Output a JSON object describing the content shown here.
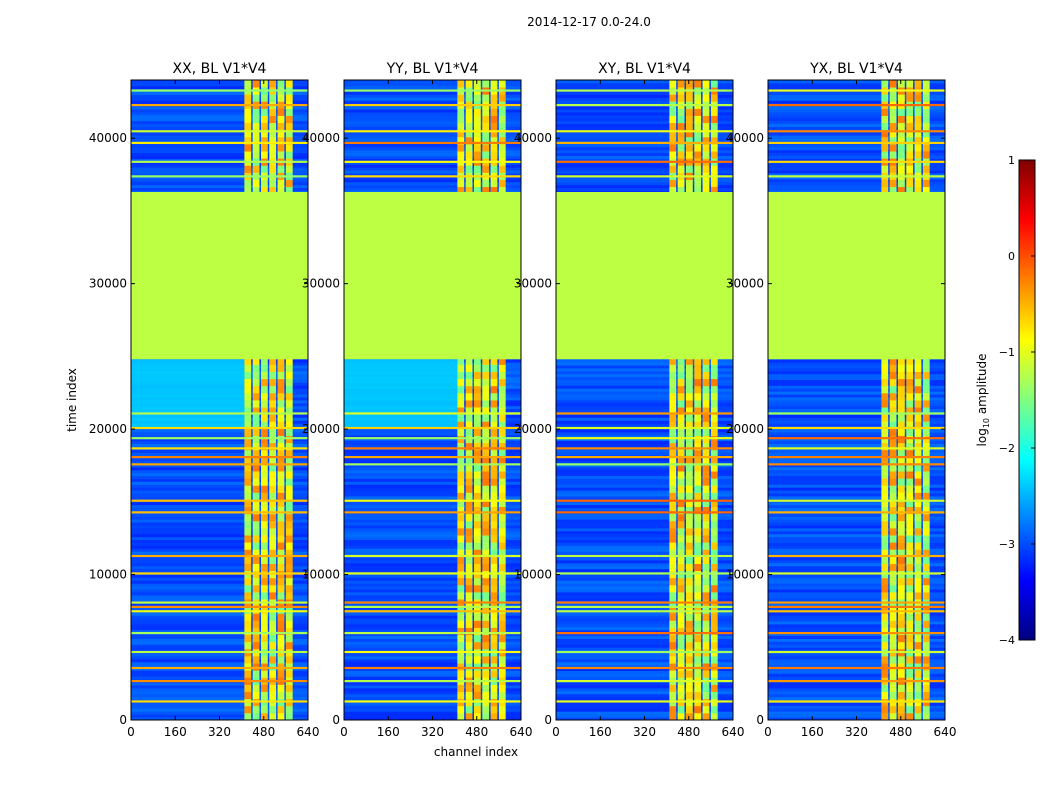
{
  "figure": {
    "suptitle": "2014-12-17 0.0-24.0",
    "xlabel": "channel index",
    "ylabel": "time index"
  },
  "colorbar": {
    "label_prefix": "log",
    "label_sub": "10",
    "label_suffix": " amplitude",
    "range": [
      -4,
      1
    ],
    "ticks": [
      -4,
      -3,
      -2,
      -1,
      0,
      1
    ],
    "tick_labels": [
      "−4",
      "−3",
      "−2",
      "−1",
      "0",
      "1"
    ],
    "colormap": "jet",
    "stops": [
      "#000080",
      "#0000ff",
      "#0080ff",
      "#00ffff",
      "#80ff80",
      "#ffff00",
      "#ff8000",
      "#ff0000",
      "#800000"
    ]
  },
  "chart_data": [
    {
      "type": "heatmap",
      "title": "XX, BL V1*V4",
      "xlim": [
        0,
        640
      ],
      "ylim": [
        0,
        44000
      ],
      "xticks": [
        0,
        160,
        320,
        480,
        640
      ],
      "yticks": [
        0,
        10000,
        20000,
        30000,
        40000
      ],
      "flag_band": [
        24800,
        36300
      ],
      "rfi_channels": [
        410,
        600
      ],
      "bright_region": {
        "channels": [
          0,
          410
        ],
        "time": [
          20000,
          24800
        ]
      }
    },
    {
      "type": "heatmap",
      "title": "YY, BL V1*V4",
      "xlim": [
        0,
        640
      ],
      "ylim": [
        0,
        44000
      ],
      "xticks": [
        0,
        160,
        320,
        480,
        640
      ],
      "yticks": [
        0,
        10000,
        20000,
        30000,
        40000
      ],
      "flag_band": [
        24800,
        36300
      ],
      "rfi_channels": [
        410,
        600
      ],
      "bright_region": {
        "channels": [
          0,
          410
        ],
        "time": [
          20000,
          24800
        ]
      }
    },
    {
      "type": "heatmap",
      "title": "XY, BL V1*V4",
      "xlim": [
        0,
        640
      ],
      "ylim": [
        0,
        44000
      ],
      "xticks": [
        0,
        160,
        320,
        480,
        640
      ],
      "yticks": [
        0,
        10000,
        20000,
        30000,
        40000
      ],
      "flag_band": [
        24800,
        36300
      ],
      "rfi_channels": [
        410,
        600
      ],
      "bright_region": null
    },
    {
      "type": "heatmap",
      "title": "YX, BL V1*V4",
      "xlim": [
        0,
        640
      ],
      "ylim": [
        0,
        44000
      ],
      "xticks": [
        0,
        160,
        320,
        480,
        640
      ],
      "yticks": [
        0,
        10000,
        20000,
        30000,
        40000
      ],
      "flag_band": [
        24800,
        36300
      ],
      "rfi_channels": [
        410,
        600
      ],
      "bright_region": null
    }
  ]
}
